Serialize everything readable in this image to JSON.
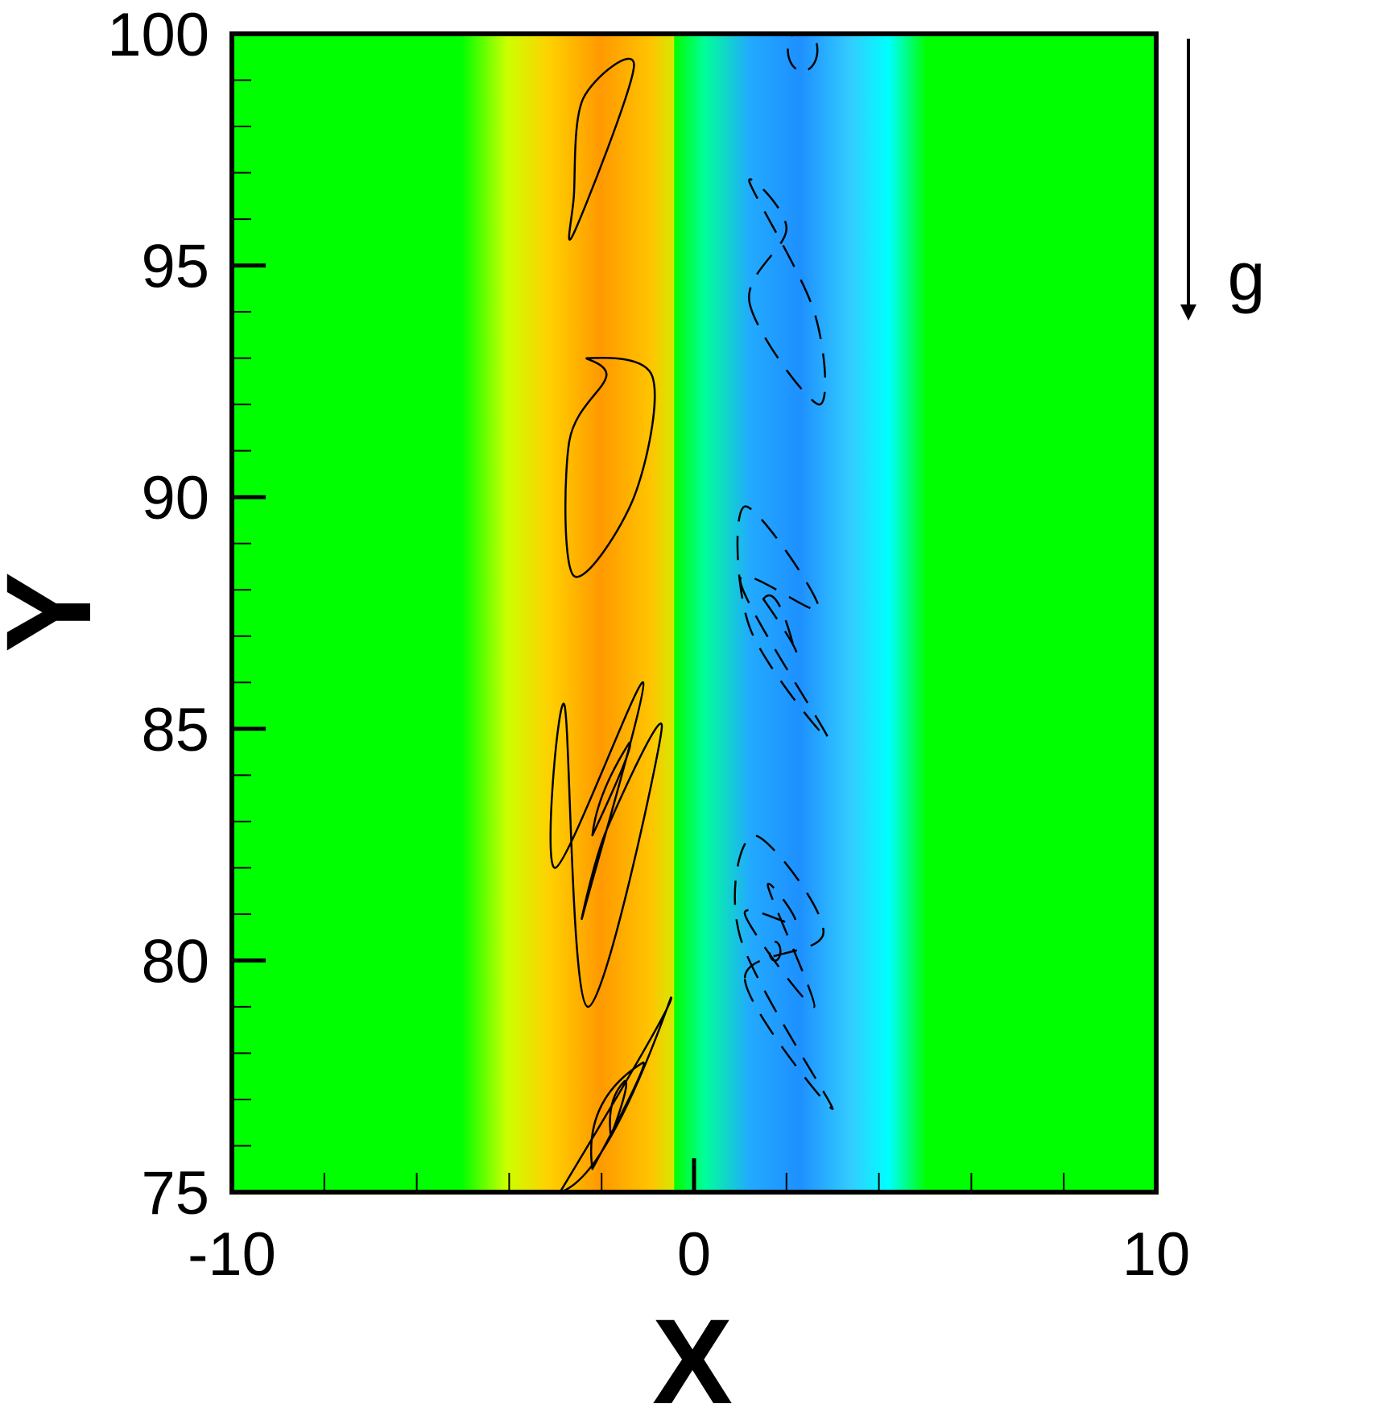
{
  "chart_data": {
    "type": "heatmap",
    "title": "",
    "xlabel": "X",
    "ylabel": "Y",
    "xlim": [
      -10,
      10
    ],
    "ylim": [
      75,
      100
    ],
    "x_ticks": [
      "-10",
      "0",
      "10"
    ],
    "y_ticks": [
      "75",
      "80",
      "85",
      "90",
      "95",
      "100"
    ],
    "grid": false,
    "colormap": "rainbow (blue negative, green zero, orange positive)",
    "background_color": "#00FF00",
    "gravity_annotation": {
      "label": "g",
      "direction": "down"
    },
    "field_bands": [
      {
        "x_center": -2.3,
        "width": 2.6,
        "sign": "positive",
        "color": "#FF9900"
      },
      {
        "x_center": 2.3,
        "width": 2.6,
        "sign": "negative",
        "color": "#1E90FF"
      }
    ],
    "contours_positive": [
      {
        "level": 1,
        "points": [
          [
            -2.3,
            79.0
          ],
          [
            -0.7,
            85.0
          ],
          [
            -1.9,
            82.8
          ],
          [
            -2.4,
            81.0
          ],
          [
            -1.1,
            86.0
          ],
          [
            -3.0,
            82.0
          ],
          [
            -2.8,
            85.5
          ]
        ]
      },
      {
        "level": 1,
        "points": [
          [
            -2.3,
            93.0
          ],
          [
            -0.9,
            92.6
          ],
          [
            -1.3,
            90.0
          ],
          [
            -2.6,
            88.3
          ],
          [
            -2.7,
            91.2
          ],
          [
            -1.9,
            92.6
          ]
        ]
      },
      {
        "level": 1,
        "points": [
          [
            -2.6,
            95.7
          ],
          [
            -1.3,
            99.3
          ],
          [
            -2.4,
            98.6
          ],
          [
            -2.6,
            96.5
          ]
        ]
      },
      {
        "level": 1,
        "points": [
          [
            -2.9,
            75.0
          ],
          [
            -0.5,
            79.2
          ],
          [
            -1.9,
            75.3
          ]
        ]
      },
      {
        "level": 2,
        "points": [
          [
            -2.2,
            75.5
          ],
          [
            -1.1,
            77.8
          ],
          [
            -2.4,
            77.0
          ]
        ]
      },
      {
        "level": 2,
        "points": [
          [
            -2.2,
            82.7
          ],
          [
            -1.4,
            84.7
          ],
          [
            -2.1,
            83.6
          ]
        ]
      },
      {
        "level": 3,
        "points": [
          [
            -1.8,
            76.2
          ],
          [
            -1.5,
            77.4
          ],
          [
            -1.9,
            77.0
          ]
        ]
      }
    ],
    "contours_negative": [
      {
        "level": -1,
        "points": [
          [
            1.1,
            79.6
          ],
          [
            3.0,
            76.8
          ],
          [
            1.0,
            80.5
          ],
          [
            1.3,
            82.7
          ],
          [
            2.8,
            80.6
          ]
        ]
      },
      {
        "level": -1,
        "points": [
          [
            1.0,
            88.2
          ],
          [
            2.9,
            84.8
          ],
          [
            1.2,
            87.2
          ],
          [
            1.1,
            89.8
          ],
          [
            2.7,
            87.6
          ]
        ]
      },
      {
        "level": -1,
        "points": [
          [
            1.2,
            94.2
          ],
          [
            2.7,
            92.0
          ],
          [
            2.6,
            94.0
          ],
          [
            1.2,
            96.8
          ],
          [
            2.0,
            95.8
          ]
        ]
      },
      {
        "level": -2,
        "points": [
          [
            1.1,
            81.0
          ],
          [
            2.6,
            79.0
          ],
          [
            1.6,
            81.6
          ],
          [
            2.2,
            80.8
          ]
        ]
      },
      {
        "level": -2,
        "points": [
          [
            1.5,
            87.8
          ],
          [
            2.2,
            86.6
          ],
          [
            1.8,
            88.2
          ]
        ]
      },
      {
        "level": -2,
        "points": [
          [
            2.1,
            99.3
          ],
          [
            2.6,
            100.0
          ]
        ]
      },
      {
        "level": -3,
        "points": [
          [
            1.7,
            80.1
          ],
          [
            1.8,
            80.3
          ]
        ]
      }
    ]
  }
}
